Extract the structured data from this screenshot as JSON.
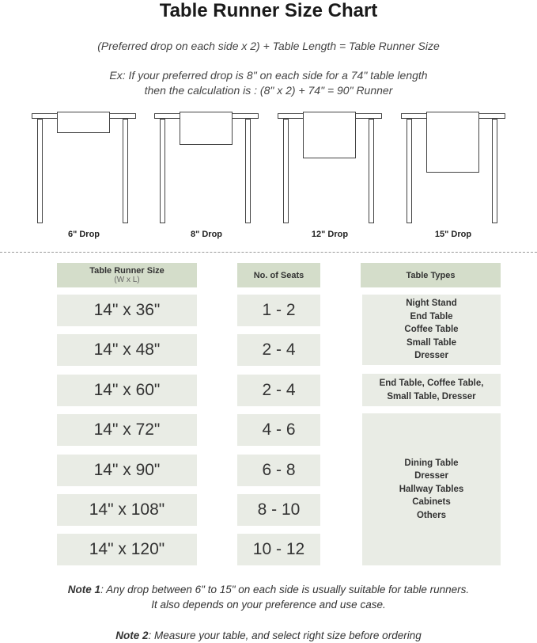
{
  "title": "Table Runner Size Chart",
  "formula": "(Preferred drop on each side x 2) + Table Length = Table Runner Size",
  "example_line1": "Ex: If your preferred drop is 8\" on each side for a 74\" table length",
  "example_line2": "then the calculation is : (8\" x 2) + 74\" = 90\" Runner",
  "drops": [
    "6\" Drop",
    "8\" Drop",
    "12\" Drop",
    "15\" Drop"
  ],
  "headers": {
    "size": "Table Runner Size",
    "size_sub": "(W x L)",
    "seats": "No. of Seats",
    "types": "Table Types"
  },
  "sizes": [
    "14\" x 36\"",
    "14\" x 48\"",
    "14\" x 60\"",
    "14\" x 72\"",
    "14\" x 90\"",
    "14\" x 108\"",
    "14\" x 120\""
  ],
  "seats": [
    "1 - 2",
    "2 - 4",
    "2 - 4",
    "4 - 6",
    "6 - 8",
    "8 - 10",
    "10 - 12"
  ],
  "types": [
    [
      "Night Stand",
      "End Table",
      "Coffee Table",
      "Small Table",
      "Dresser"
    ],
    [
      "End Table, Coffee Table,",
      "Small Table, Dresser"
    ],
    [
      "Dining Table",
      "Dresser",
      "Hallway Tables",
      "Cabinets",
      "Others"
    ]
  ],
  "note1_label": "Note 1",
  "note1_text": ": Any drop between 6\" to 15\" on each side is usually suitable for table runners.",
  "note1_line2": "It also depends on your preference and use case.",
  "note2_label": "Note 2",
  "note2_text": ": Measure your table, and select right size before ordering",
  "colors": {
    "header": "#d4ddca",
    "cell": "#e9ece5"
  }
}
